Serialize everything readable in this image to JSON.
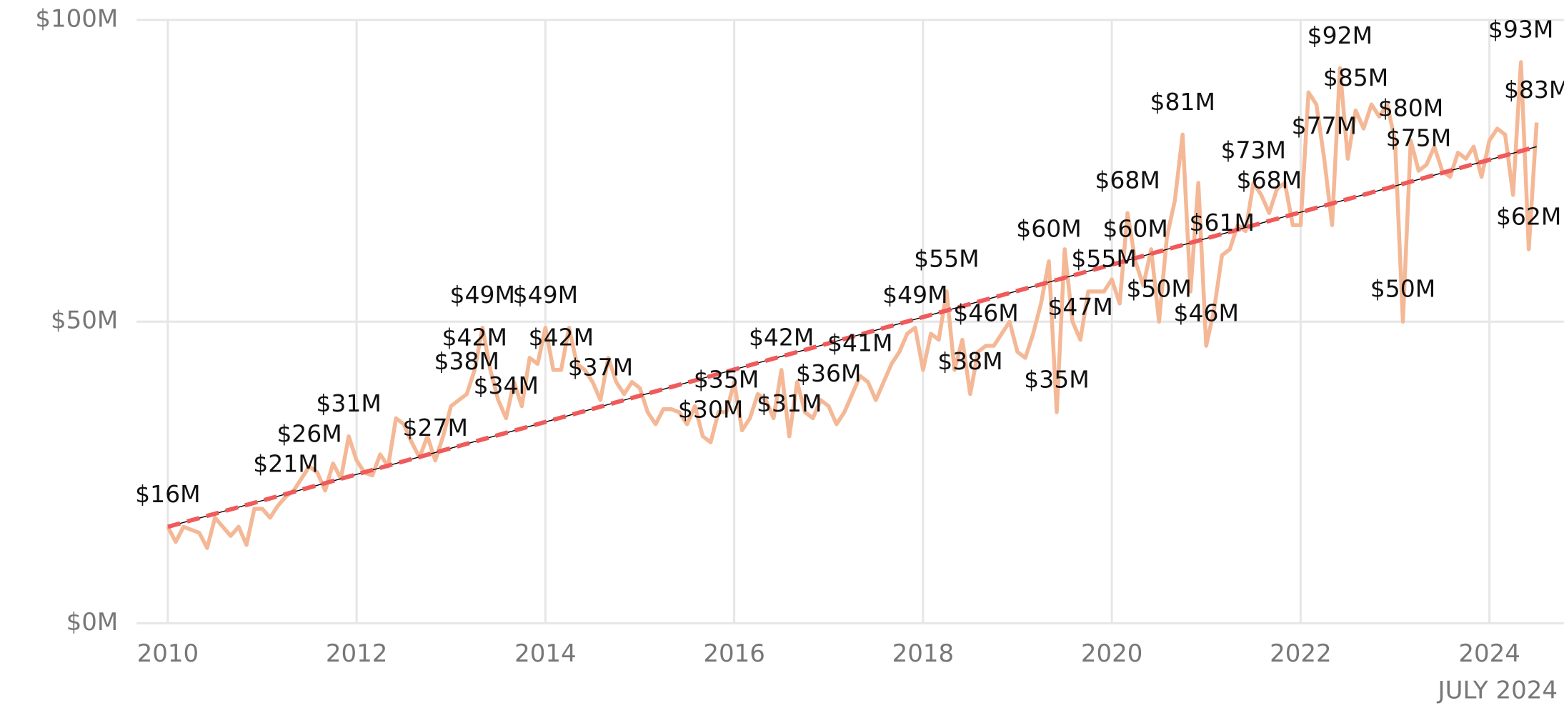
{
  "chart_data": {
    "type": "line",
    "annotation": "JULY 2024",
    "xlim": [
      2009.67,
      2024.79
    ],
    "xticks": [
      2010,
      2012,
      2014,
      2016,
      2018,
      2020,
      2022,
      2024
    ],
    "ylim": [
      0,
      100
    ],
    "yticks": [
      {
        "value": 0,
        "label": "$0M"
      },
      {
        "value": 50,
        "label": "$50M"
      },
      {
        "value": 100,
        "label": "$100M"
      }
    ],
    "grid": true,
    "x": [
      "2010-01",
      "2010-02",
      "2010-03",
      "2010-04",
      "2010-05",
      "2010-06",
      "2010-07",
      "2010-08",
      "2010-09",
      "2010-10",
      "2010-11",
      "2010-12",
      "2011-01",
      "2011-02",
      "2011-03",
      "2011-04",
      "2011-05",
      "2011-06",
      "2011-07",
      "2011-08",
      "2011-09",
      "2011-10",
      "2011-11",
      "2011-12",
      "2012-01",
      "2012-02",
      "2012-03",
      "2012-04",
      "2012-05",
      "2012-06",
      "2012-07",
      "2012-08",
      "2012-09",
      "2012-10",
      "2012-11",
      "2012-12",
      "2013-01",
      "2013-02",
      "2013-03",
      "2013-04",
      "2013-05",
      "2013-06",
      "2013-07",
      "2013-08",
      "2013-09",
      "2013-10",
      "2013-11",
      "2013-12",
      "2014-01",
      "2014-02",
      "2014-03",
      "2014-04",
      "2014-05",
      "2014-06",
      "2014-07",
      "2014-08",
      "2014-09",
      "2014-10",
      "2014-11",
      "2014-12",
      "2015-01",
      "2015-02",
      "2015-03",
      "2015-04",
      "2015-05",
      "2015-06",
      "2015-07",
      "2015-08",
      "2015-09",
      "2015-10",
      "2015-11",
      "2015-12",
      "2016-01",
      "2016-02",
      "2016-03",
      "2016-04",
      "2016-05",
      "2016-06",
      "2016-07",
      "2016-08",
      "2016-09",
      "2016-10",
      "2016-11",
      "2016-12",
      "2017-01",
      "2017-02",
      "2017-03",
      "2017-04",
      "2017-05",
      "2017-06",
      "2017-07",
      "2017-08",
      "2017-09",
      "2017-10",
      "2017-11",
      "2017-12",
      "2018-01",
      "2018-02",
      "2018-03",
      "2018-04",
      "2018-05",
      "2018-06",
      "2018-07",
      "2018-08",
      "2018-09",
      "2018-10",
      "2018-11",
      "2018-12",
      "2019-01",
      "2019-02",
      "2019-03",
      "2019-04",
      "2019-05",
      "2019-06",
      "2019-07",
      "2019-08",
      "2019-09",
      "2019-10",
      "2019-11",
      "2019-12",
      "2020-01",
      "2020-02",
      "2020-03",
      "2020-04",
      "2020-05",
      "2020-06",
      "2020-07",
      "2020-08",
      "2020-09",
      "2020-10",
      "2020-11",
      "2020-12",
      "2021-01",
      "2021-02",
      "2021-03",
      "2021-04",
      "2021-05",
      "2021-06",
      "2021-07",
      "2021-08",
      "2021-09",
      "2021-10",
      "2021-11",
      "2021-12",
      "2022-01",
      "2022-02",
      "2022-03",
      "2022-04",
      "2022-05",
      "2022-06",
      "2022-07",
      "2022-08",
      "2022-09",
      "2022-10",
      "2022-11",
      "2022-12",
      "2023-01",
      "2023-02",
      "2023-03",
      "2023-04",
      "2023-05",
      "2023-06",
      "2023-07",
      "2023-08",
      "2023-09",
      "2023-10",
      "2023-11",
      "2023-12",
      "2024-01",
      "2024-02",
      "2024-03",
      "2024-04",
      "2024-05",
      "2024-06",
      "2024-07"
    ],
    "series": [
      {
        "color": "#f4b896",
        "values": [
          16,
          13.5,
          16,
          15.5,
          15,
          12.5,
          17.5,
          16,
          14.5,
          16,
          13,
          19,
          19,
          17.5,
          19.5,
          21,
          22,
          24,
          26,
          25,
          22,
          26.5,
          24,
          31,
          27,
          25,
          24.5,
          28,
          26,
          34,
          33,
          30,
          27.5,
          31,
          27,
          31,
          36,
          37,
          38,
          42,
          49,
          42,
          37,
          34,
          40,
          36,
          44,
          43,
          49,
          42,
          42,
          49,
          43,
          42,
          40,
          37,
          44,
          40,
          38,
          40,
          39,
          35,
          33,
          35.5,
          35.5,
          35,
          33,
          36,
          31,
          30,
          35,
          35,
          40,
          32,
          34,
          38,
          37,
          34,
          42,
          31,
          40,
          35,
          34,
          37,
          36,
          33,
          35,
          38,
          41,
          40,
          37,
          40,
          43,
          45,
          48,
          49,
          42,
          48,
          47,
          55,
          42,
          47,
          38,
          45,
          46,
          46,
          48,
          50,
          45,
          44,
          48,
          53,
          60,
          35,
          62,
          50,
          47,
          55,
          55,
          55,
          57,
          53,
          68,
          60,
          56,
          62,
          50,
          64,
          70,
          81,
          55,
          73,
          46,
          52,
          61,
          62,
          66,
          65,
          73,
          71,
          68,
          72,
          73,
          66,
          66,
          88,
          86,
          77,
          66,
          92,
          77,
          85,
          82,
          86,
          84,
          86,
          80,
          50,
          80,
          75,
          76,
          79,
          75,
          74,
          78,
          77,
          79,
          74,
          80,
          82,
          81,
          71,
          93,
          62,
          83
        ],
        "value_labels": [
          "$16M",
          null,
          null,
          null,
          null,
          null,
          null,
          null,
          null,
          null,
          null,
          null,
          null,
          null,
          null,
          "$21M",
          null,
          null,
          "$26M",
          null,
          null,
          null,
          null,
          "$31M",
          null,
          null,
          null,
          null,
          null,
          null,
          null,
          null,
          null,
          null,
          "$27M",
          null,
          null,
          null,
          "$38M",
          "$42M",
          "$49M",
          null,
          null,
          "$34M",
          null,
          null,
          null,
          null,
          "$49M",
          null,
          "$42M",
          null,
          null,
          null,
          null,
          "$37M",
          null,
          null,
          null,
          null,
          null,
          null,
          null,
          null,
          null,
          null,
          null,
          null,
          null,
          "$30M",
          null,
          "$35M",
          null,
          null,
          null,
          null,
          null,
          null,
          "$42M",
          "$31M",
          null,
          null,
          null,
          null,
          "$36M",
          null,
          null,
          null,
          "$41M",
          null,
          null,
          null,
          null,
          null,
          null,
          "$49M",
          null,
          null,
          null,
          "$55M",
          null,
          null,
          "$38M",
          null,
          "$46M",
          null,
          null,
          null,
          null,
          null,
          null,
          null,
          "$60M",
          "$35M",
          null,
          null,
          "$47M",
          null,
          null,
          "$55M",
          null,
          null,
          "$68M",
          "$60M",
          null,
          null,
          "$50M",
          null,
          null,
          "$81M",
          null,
          null,
          "$46M",
          null,
          "$61M",
          null,
          null,
          null,
          "$73M",
          null,
          "$68M",
          null,
          null,
          null,
          null,
          null,
          null,
          "$77M",
          null,
          "$92M",
          null,
          "$85M",
          null,
          null,
          null,
          null,
          null,
          "$50M",
          "$80M",
          "$75M",
          null,
          null,
          null,
          null,
          null,
          null,
          null,
          null,
          null,
          null,
          null,
          null,
          "$93M",
          "$62M",
          "$83M"
        ]
      }
    ],
    "trendlines": [
      {
        "x": [
          2010,
          2024.5
        ],
        "values": [
          16,
          79
        ],
        "color": "#000000",
        "dashed": false
      },
      {
        "x": [
          2010,
          2024.5
        ],
        "values": [
          16,
          79
        ],
        "color": "#f05a5a",
        "dashed": true
      }
    ]
  }
}
